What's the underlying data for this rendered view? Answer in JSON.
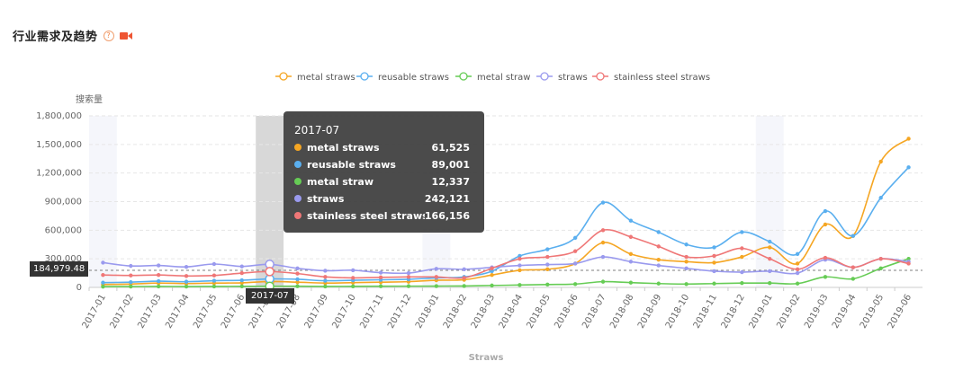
{
  "header": {
    "title": "行业需求及趋势",
    "help": "?"
  },
  "colors": {
    "metal_straws": "#f5a623",
    "reusable_straws": "#5aafef",
    "metal_straw": "#66cc55",
    "straws": "#9a9aee",
    "stainless": "#ef7777"
  },
  "chart_data": {
    "type": "line",
    "title": "行业需求及趋势",
    "ylabel": "搜索量",
    "xlabel": "Straws",
    "ylim": [
      0,
      1800000
    ],
    "yticks": [
      "1,800,000",
      "1,500,000",
      "1,200,000",
      "900,000",
      "600,000",
      "300,000",
      "0"
    ],
    "categories": [
      "2017-01",
      "2017-02",
      "2017-03",
      "2017-04",
      "2017-05",
      "2017-06",
      "2017-07",
      "2017-08",
      "2017-09",
      "2017-10",
      "2017-11",
      "2017-12",
      "2018-01",
      "2018-02",
      "2018-03",
      "2018-04",
      "2018-05",
      "2018-06",
      "2018-07",
      "2018-08",
      "2018-09",
      "2018-10",
      "2018-11",
      "2018-12",
      "2019-01",
      "2019-02",
      "2019-03",
      "2019-04",
      "2019-05",
      "2019-06"
    ],
    "series": [
      {
        "name": "metal straws",
        "color": "#f5a623",
        "values": [
          30000,
          35000,
          45000,
          40000,
          45000,
          48000,
          61525,
          55000,
          45000,
          50000,
          55000,
          60000,
          75000,
          80000,
          130000,
          180000,
          190000,
          250000,
          470000,
          350000,
          290000,
          270000,
          260000,
          320000,
          420000,
          250000,
          660000,
          540000,
          1320000,
          1560000
        ]
      },
      {
        "name": "reusable straws",
        "color": "#5aafef",
        "values": [
          50000,
          55000,
          65000,
          60000,
          70000,
          75000,
          89001,
          85000,
          70000,
          75000,
          80000,
          85000,
          100000,
          110000,
          170000,
          330000,
          400000,
          520000,
          890000,
          700000,
          580000,
          450000,
          420000,
          580000,
          480000,
          350000,
          800000,
          540000,
          940000,
          1260000
        ]
      },
      {
        "name": "metal straw",
        "color": "#66cc55",
        "values": [
          8000,
          9000,
          10000,
          9000,
          10000,
          11000,
          12337,
          12000,
          10000,
          11000,
          12000,
          13000,
          14000,
          15000,
          20000,
          25000,
          30000,
          35000,
          60000,
          50000,
          40000,
          35000,
          40000,
          45000,
          45000,
          40000,
          110000,
          90000,
          200000,
          300000
        ]
      },
      {
        "name": "straws",
        "color": "#9a9aee",
        "values": [
          260000,
          225000,
          230000,
          215000,
          245000,
          220000,
          242121,
          200000,
          175000,
          180000,
          155000,
          150000,
          195000,
          190000,
          210000,
          230000,
          240000,
          250000,
          320000,
          270000,
          230000,
          200000,
          170000,
          160000,
          170000,
          150000,
          290000,
          210000,
          300000,
          270000
        ]
      },
      {
        "name": "stainless steel straws",
        "color": "#ef7777",
        "values": [
          130000,
          125000,
          130000,
          120000,
          125000,
          150000,
          166156,
          145000,
          110000,
          100000,
          105000,
          110000,
          110000,
          100000,
          200000,
          300000,
          320000,
          380000,
          600000,
          530000,
          430000,
          320000,
          330000,
          410000,
          300000,
          190000,
          310000,
          210000,
          300000,
          250000
        ]
      }
    ],
    "legend": [
      "metal straws",
      "reusable straws",
      "metal straw",
      "straws",
      "stainless steel straws"
    ],
    "legend_position": "top-center",
    "grid": true,
    "highlight_category": "2017-07"
  },
  "tooltip": {
    "title": "2017-07",
    "rows": [
      {
        "name": "metal straws",
        "value": "61,525",
        "color": "#f5a623"
      },
      {
        "name": "reusable straws",
        "value": "89,001",
        "color": "#5aafef"
      },
      {
        "name": "metal straw",
        "value": "12,337",
        "color": "#66cc55"
      },
      {
        "name": "straws",
        "value": "242,121",
        "color": "#9a9aee"
      },
      {
        "name": "stainless steel straws...",
        "value": "166,156",
        "color": "#ef7777"
      }
    ]
  },
  "crosshair": {
    "y_value_label": "184,979.48",
    "x_value_label": "2017-07"
  }
}
